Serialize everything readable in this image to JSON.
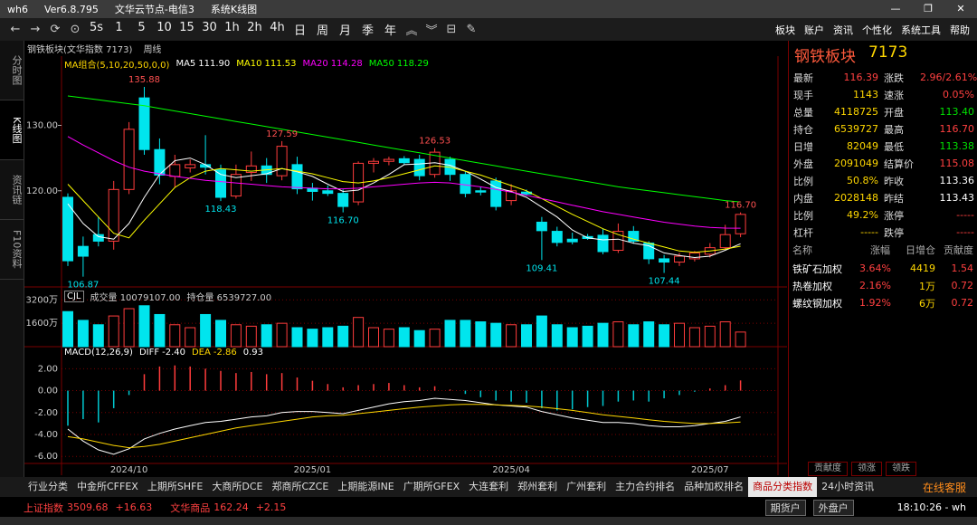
{
  "titlebar": {
    "items": [
      "wh6",
      "Ver6.8.795",
      "文华云节点-电信3",
      "系统K线图"
    ]
  },
  "toolbar": {
    "periods": [
      "5s",
      "1",
      "5",
      "10",
      "15",
      "30",
      "1h",
      "2h",
      "4h",
      "日",
      "周",
      "月",
      "季",
      "年"
    ],
    "menu": [
      "板块",
      "账户",
      "资讯",
      "个性化",
      "系统工具",
      "帮助"
    ]
  },
  "sidebar": {
    "tabs": [
      "分时图",
      "K线图",
      "资讯链",
      "F10资料"
    ],
    "active": 1
  },
  "chart_header": {
    "title": "钢铁板块(文华指数 7173)",
    "period": "周线"
  },
  "chart_data": [
    {
      "type": "candlestick",
      "indicator": "MA组合(5,10,20,50,0,0)",
      "open": [
        119.0,
        111.5,
        113.3,
        112.3,
        120.2,
        134.2,
        126.3,
        122.2,
        123.5,
        124.0,
        123.2,
        119.2,
        122.8,
        123.8,
        122.3,
        124.0,
        120.4,
        120.0,
        119.6,
        118.3,
        124.2,
        124.5,
        124.9,
        124.8,
        122.5,
        124.8,
        122.5,
        120.0,
        121.5,
        118.5,
        119.8,
        115.2,
        113.8,
        112.6,
        113.0,
        113.2,
        110.9,
        113.8,
        112.0,
        109.6,
        109.1,
        109.6,
        110.3,
        111.3,
        113.43
      ],
      "high": [
        119.6,
        113.0,
        116.0,
        121.5,
        130.5,
        135.88,
        128.0,
        125.5,
        124.8,
        128.5,
        124.0,
        124.0,
        126.0,
        125.0,
        127.59,
        125.2,
        121.2,
        120.8,
        120.2,
        124.5,
        125.0,
        125.2,
        125.3,
        125.5,
        126.53,
        125.2,
        123.0,
        120.6,
        122.0,
        121.0,
        120.2,
        116.0,
        114.5,
        113.6,
        113.4,
        114.2,
        115.0,
        114.6,
        112.3,
        110.2,
        110.5,
        110.8,
        112.0,
        114.8,
        116.7
      ],
      "low": [
        108.5,
        106.87,
        111.5,
        111.0,
        119.5,
        125.5,
        121.0,
        120.5,
        122.8,
        122.5,
        118.43,
        118.8,
        121.5,
        121.2,
        121.6,
        119.5,
        118.5,
        119.2,
        116.7,
        117.8,
        122.8,
        123.9,
        124.0,
        121.6,
        122.0,
        121.5,
        119.0,
        119.3,
        117.0,
        117.8,
        119.2,
        109.41,
        111.5,
        111.8,
        112.5,
        110.3,
        110.5,
        111.9,
        108.8,
        107.44,
        108.5,
        109.2,
        109.8,
        111.0,
        112.9
      ],
      "close": [
        109.3,
        110.0,
        112.3,
        120.2,
        129.4,
        126.3,
        122.4,
        124.0,
        124.0,
        123.6,
        119.0,
        122.5,
        123.8,
        122.5,
        126.8,
        120.3,
        119.9,
        119.6,
        117.6,
        124.2,
        124.5,
        124.8,
        124.3,
        122.3,
        125.9,
        122.5,
        119.6,
        119.8,
        117.6,
        120.0,
        119.5,
        113.9,
        112.1,
        112.2,
        112.7,
        110.7,
        113.8,
        112.3,
        109.6,
        109.1,
        110.0,
        110.5,
        111.3,
        113.3,
        116.39
      ],
      "up_color": "#ff3c3c",
      "down_color": "#00e5ee",
      "ylim": [
        105.3,
        139.2
      ],
      "yticks": [
        {
          "value": 130,
          "label": "130.00"
        },
        {
          "value": 120,
          "label": "120.00"
        }
      ],
      "series": [
        {
          "name": "MA5",
          "label": "111.90",
          "color": "#ffffff",
          "values": [
            118.0,
            115.0,
            113.0,
            112.6,
            115.0,
            119.0,
            122.5,
            124.6,
            125.0,
            124.0,
            122.5,
            122.0,
            122.3,
            122.6,
            123.4,
            122.9,
            122.2,
            121.0,
            119.9,
            120.1,
            121.2,
            122.5,
            124.0,
            124.1,
            124.3,
            123.9,
            123.0,
            121.8,
            120.5,
            119.9,
            119.0,
            117.5,
            116.0,
            114.0,
            112.8,
            112.5,
            112.6,
            112.0,
            111.6,
            110.5,
            110.1,
            109.8,
            110.0,
            110.9,
            111.9
          ]
        },
        {
          "name": "MA10",
          "label": "111.53",
          "color": "#ffff00",
          "values": [
            121.0,
            118.5,
            116.0,
            113.5,
            112.8,
            115.5,
            118.0,
            120.5,
            122.0,
            123.0,
            123.4,
            123.2,
            123.0,
            123.2,
            123.4,
            123.0,
            122.6,
            122.0,
            121.4,
            121.2,
            121.5,
            122.0,
            122.6,
            123.2,
            123.8,
            123.6,
            123.0,
            122.4,
            121.6,
            120.8,
            120.0,
            118.8,
            117.6,
            116.4,
            115.3,
            114.2,
            113.3,
            112.6,
            112.0,
            111.4,
            110.8,
            110.6,
            110.8,
            111.1,
            111.53
          ]
        },
        {
          "name": "MA20",
          "label": "114.28",
          "color": "#ff00ff",
          "values": [
            128.3,
            127.0,
            125.8,
            124.6,
            123.6,
            123.0,
            122.6,
            122.2,
            121.9,
            121.6,
            121.4,
            121.2,
            121.0,
            120.8,
            120.6,
            120.5,
            120.4,
            120.3,
            120.3,
            120.4,
            120.6,
            120.8,
            121.0,
            121.2,
            121.3,
            121.2,
            120.9,
            120.6,
            120.2,
            119.8,
            119.3,
            118.8,
            118.3,
            117.8,
            117.3,
            116.8,
            116.4,
            116.0,
            115.6,
            115.2,
            114.9,
            114.6,
            114.4,
            114.3,
            114.28
          ]
        },
        {
          "name": "MA50",
          "label": "118.29",
          "color": "#00ff00",
          "values": [
            134.5,
            134.2,
            133.9,
            133.6,
            133.3,
            133.0,
            132.6,
            132.2,
            131.8,
            131.4,
            131.0,
            130.6,
            130.2,
            129.8,
            129.4,
            129.0,
            128.6,
            128.2,
            127.8,
            127.4,
            127.0,
            126.6,
            126.2,
            125.8,
            125.4,
            125.0,
            124.6,
            124.2,
            123.8,
            123.4,
            123.0,
            122.6,
            122.2,
            121.8,
            121.4,
            121.0,
            120.6,
            120.3,
            120.0,
            119.7,
            119.4,
            119.1,
            118.8,
            118.5,
            118.29
          ]
        }
      ],
      "annotations": [
        {
          "text": "135.88",
          "candle": 5,
          "at": "high"
        },
        {
          "text": "127.59",
          "candle": 14,
          "at": "high"
        },
        {
          "text": "126.53",
          "candle": 24,
          "at": "high"
        },
        {
          "text": "116.70",
          "candle": 44,
          "at": "high"
        },
        {
          "text": "106.87",
          "candle": 1,
          "at": "low"
        },
        {
          "text": "118.43",
          "candle": 10,
          "at": "low"
        },
        {
          "text": "116.70",
          "candle": 18,
          "at": "low"
        },
        {
          "text": "109.41",
          "candle": 31,
          "at": "low"
        },
        {
          "text": "107.44",
          "candle": 39,
          "at": "low"
        }
      ]
    },
    {
      "type": "bar",
      "title": "CJL",
      "notes": [
        "成交量 10079107.00",
        "持仓量 6539727.00"
      ],
      "values": [
        2400,
        1800,
        1500,
        2100,
        2600,
        2800,
        2200,
        1500,
        1300,
        2200,
        1800,
        1500,
        1400,
        1500,
        1600,
        1300,
        1200,
        1300,
        1400,
        2000,
        1300,
        1200,
        1300,
        1100,
        1200,
        1800,
        1800,
        1700,
        1600,
        1500,
        1500,
        2100,
        1500,
        1300,
        1400,
        1600,
        1700,
        1500,
        1700,
        1500,
        1600,
        1300,
        1400,
        1700,
        1000
      ],
      "ylim": [
        0,
        3900
      ],
      "yticks": [
        {
          "value": 3200,
          "label": "3200万"
        },
        {
          "value": 1600,
          "label": "1600万"
        }
      ]
    },
    {
      "type": "macd",
      "title": "MACD(12,26,9)",
      "categories": [
        null,
        null,
        null,
        null,
        "2024/10",
        null,
        null,
        null,
        null,
        null,
        null,
        null,
        null,
        null,
        null,
        null,
        "2025/01",
        null,
        null,
        null,
        null,
        null,
        null,
        null,
        null,
        null,
        null,
        null,
        null,
        "2025/04",
        null,
        null,
        null,
        null,
        null,
        null,
        null,
        null,
        null,
        null,
        null,
        null,
        "2025/07",
        null,
        null
      ],
      "histogram": [
        -3.2,
        -2.6,
        -2.9,
        -1.6,
        -0.4,
        1.5,
        2.2,
        2.3,
        2.2,
        2.0,
        1.8,
        1.6,
        1.7,
        1.5,
        1.6,
        1.2,
        0.9,
        0.6,
        0.3,
        0.5,
        0.6,
        0.7,
        0.5,
        0.3,
        0.4,
        0.1,
        -0.3,
        -0.6,
        -0.9,
        -1.0,
        -1.1,
        -1.6,
        -1.8,
        -1.7,
        -1.5,
        -1.4,
        -1.0,
        -0.9,
        -1.0,
        -0.7,
        -0.4,
        -0.1,
        0.2,
        0.5,
        0.93
      ],
      "histogram_label": "0.93",
      "series": [
        {
          "name": "DIFF",
          "label": "-2.40",
          "color": "#ffffff",
          "values": [
            -3.5,
            -4.6,
            -5.4,
            -5.8,
            -5.3,
            -4.4,
            -3.9,
            -3.5,
            -3.2,
            -2.9,
            -2.8,
            -2.6,
            -2.4,
            -2.3,
            -2.0,
            -1.9,
            -1.9,
            -2.0,
            -2.1,
            -1.8,
            -1.5,
            -1.2,
            -1.0,
            -0.9,
            -0.7,
            -0.8,
            -0.9,
            -1.1,
            -1.3,
            -1.4,
            -1.5,
            -1.9,
            -2.2,
            -2.5,
            -2.7,
            -2.9,
            -2.9,
            -3.0,
            -3.2,
            -3.3,
            -3.3,
            -3.2,
            -3.0,
            -2.8,
            -2.4
          ]
        },
        {
          "name": "DEA",
          "label": "-2.86",
          "color": "#ffd700",
          "values": [
            -4.2,
            -4.4,
            -4.7,
            -5.0,
            -5.2,
            -5.1,
            -4.9,
            -4.6,
            -4.3,
            -4.0,
            -3.7,
            -3.4,
            -3.2,
            -3.0,
            -2.8,
            -2.6,
            -2.4,
            -2.3,
            -2.25,
            -2.1,
            -1.95,
            -1.8,
            -1.65,
            -1.5,
            -1.4,
            -1.3,
            -1.25,
            -1.25,
            -1.3,
            -1.35,
            -1.4,
            -1.5,
            -1.65,
            -1.8,
            -2.0,
            -2.2,
            -2.35,
            -2.5,
            -2.65,
            -2.8,
            -2.9,
            -3.0,
            -3.0,
            -2.95,
            -2.86
          ]
        }
      ],
      "ylim": [
        -6.64,
        3.76
      ],
      "yticks": [
        {
          "value": 2,
          "label": "2.00"
        },
        {
          "value": 0,
          "label": "0.00"
        },
        {
          "value": -2,
          "label": "-2.00"
        },
        {
          "value": -4,
          "label": "-4.00"
        },
        {
          "value": -6,
          "label": "-6.00"
        }
      ]
    }
  ],
  "quote": {
    "name": "钢铁板块",
    "code": "7173",
    "rows": [
      [
        {
          "label": "最新",
          "value": "116.39",
          "color": "#ff4040"
        },
        {
          "label": "涨跌",
          "value": "2.96/2.61%",
          "color": "#ff4040"
        }
      ],
      [
        {
          "label": "现手",
          "value": "1143",
          "color": "#ffd700"
        },
        {
          "label": "速涨",
          "value": "0.05%",
          "color": "#ff4040"
        }
      ],
      [
        {
          "label": "总量",
          "value": "4118725",
          "color": "#ffd700"
        },
        {
          "label": "开盘",
          "value": "113.40",
          "color": "#00e000"
        }
      ],
      [
        {
          "label": "持仓",
          "value": "6539727",
          "color": "#ffd700"
        },
        {
          "label": "最高",
          "value": "116.70",
          "color": "#ff4040"
        }
      ],
      [
        {
          "label": "日增",
          "value": "82049",
          "color": "#ffd700"
        },
        {
          "label": "最低",
          "value": "113.38",
          "color": "#00e000"
        }
      ],
      [
        {
          "label": "外盘",
          "value": "2091049",
          "color": "#ffd700"
        },
        {
          "label": "结算价",
          "value": "115.08",
          "color": "#ff4040"
        }
      ],
      [
        {
          "label": "比例",
          "value": "50.8%",
          "color": "#ffd700"
        },
        {
          "label": "昨收",
          "value": "113.36",
          "color": "#ffffff"
        }
      ],
      [
        {
          "label": "内盘",
          "value": "2028148",
          "color": "#ffd700"
        },
        {
          "label": "昨结",
          "value": "113.43",
          "color": "#ffffff"
        }
      ],
      [
        {
          "label": "比例",
          "value": "49.2%",
          "color": "#ffd700"
        },
        {
          "label": "涨停",
          "value": "-----",
          "color": "#ff4040"
        }
      ],
      [
        {
          "label": "杠杆",
          "value": "-----",
          "color": "#ffd700"
        },
        {
          "label": "跌停",
          "value": "-----",
          "color": "#ff4040"
        }
      ]
    ]
  },
  "components": {
    "headers": [
      "名称",
      "涨幅",
      "日增仓",
      "贡献度"
    ],
    "rows": [
      [
        "铁矿石加权",
        "3.64%",
        "4419",
        "1.54"
      ],
      [
        "热卷加权",
        "2.16%",
        "1万",
        "0.72"
      ],
      [
        "螺纹钢加权",
        "1.92%",
        "6万",
        "0.72"
      ]
    ]
  },
  "panel_tabs": [
    "贡献度",
    "领涨",
    "领跌"
  ],
  "bottom_tabs": {
    "items": [
      "行业分类",
      "中金所CFFEX",
      "上期所SHFE",
      "大商所DCE",
      "郑商所CZCE",
      "上期能源INE",
      "广期所GFEX",
      "大连套利",
      "郑州套利",
      "广州套利",
      "主力合约排名",
      "品种加权排名",
      "商品分类指数",
      "24小时资讯"
    ],
    "active": 12
  },
  "service": "在线客服",
  "status": {
    "indices": [
      {
        "name": "上证指数",
        "value": "3509.68",
        "change": "+16.63"
      },
      {
        "name": "文华商品",
        "value": "162.24",
        "change": "+2.15"
      }
    ],
    "buttons": [
      "期货户",
      "外盘户"
    ],
    "time": "18:10:26 - wh"
  }
}
